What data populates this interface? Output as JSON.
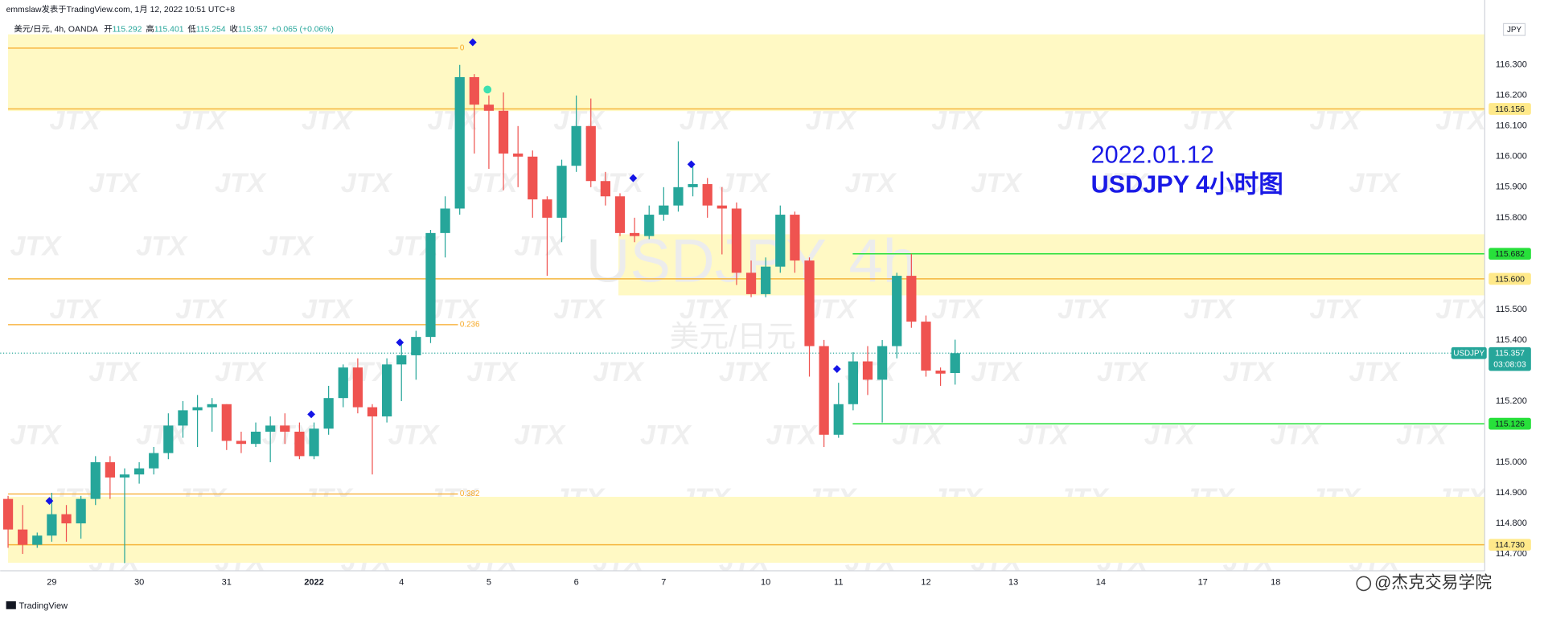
{
  "header": {
    "line1": "emmslaw发表于TradingView.com, 1月 12, 2022 10:51 UTC+8",
    "symbol": "美元/日元, 4h, OANDA",
    "open_label": "开",
    "open": 115.292,
    "high_label": "高",
    "high": 115.401,
    "low_label": "低",
    "low": 115.254,
    "close_label": "收",
    "close": 115.357,
    "change": "+0.065 (+0.06%)"
  },
  "currency": "JPY",
  "branding": "TradingView",
  "credit": "@杰克交易学院",
  "chart_data": {
    "type": "candlestick",
    "watermark": "JTX",
    "symbol_watermark": "USDJPY",
    "interval_watermark": "4h",
    "description_watermark": "美元/日元",
    "annotation": [
      "2022.01.12",
      "USDJPY 4小时图"
    ],
    "categories": [
      null,
      null,
      null,
      "29",
      null,
      null,
      null,
      null,
      null,
      "30",
      null,
      null,
      null,
      null,
      null,
      "31",
      null,
      null,
      null,
      null,
      null,
      "2022",
      null,
      null,
      null,
      null,
      null,
      "4",
      null,
      null,
      null,
      null,
      null,
      "5",
      null,
      null,
      null,
      null,
      null,
      "6",
      null,
      null,
      null,
      null,
      null,
      "7",
      null,
      null,
      null,
      null,
      null,
      null,
      "10",
      null,
      null,
      null,
      null,
      "11",
      null,
      null,
      null,
      null,
      null,
      "12",
      null,
      null,
      null,
      null,
      null,
      "13",
      null,
      null,
      null,
      null,
      null,
      "14",
      null,
      null,
      null,
      null,
      null,
      null,
      "17",
      null,
      null,
      null,
      null,
      "18"
    ],
    "open": [
      114.88,
      114.78,
      114.73,
      114.76,
      114.83,
      114.8,
      114.88,
      115.0,
      114.95,
      114.96,
      114.98,
      115.03,
      115.12,
      115.17,
      115.18,
      115.19,
      115.07,
      115.06,
      115.1,
      115.12,
      115.1,
      115.02,
      115.11,
      115.21,
      115.31,
      115.18,
      115.15,
      115.32,
      115.35,
      115.41,
      115.75,
      115.83,
      116.26,
      116.17,
      116.15,
      116.01,
      116.0,
      115.86,
      115.8,
      115.97,
      116.1,
      115.92,
      115.87,
      115.75,
      115.74,
      115.81,
      115.84,
      115.9,
      115.91,
      115.84,
      115.83,
      115.62,
      115.55,
      115.64,
      115.81,
      115.66,
      115.38,
      115.09,
      115.19,
      115.33,
      115.27,
      115.38,
      115.61,
      115.46,
      115.3,
      115.292,
      null,
      null,
      null,
      null,
      null,
      null,
      null,
      null,
      null,
      null,
      null,
      null,
      null,
      null,
      null,
      null,
      null,
      null,
      null,
      null,
      null,
      null
    ],
    "high": [
      114.89,
      114.86,
      114.77,
      114.9,
      114.86,
      114.89,
      115.02,
      115.02,
      114.98,
      115.0,
      115.05,
      115.16,
      115.2,
      115.22,
      115.21,
      115.19,
      115.1,
      115.13,
      115.15,
      115.16,
      115.13,
      115.13,
      115.25,
      115.32,
      115.34,
      115.19,
      115.34,
      115.39,
      115.43,
      115.76,
      115.87,
      116.3,
      116.27,
      116.2,
      116.21,
      116.1,
      116.02,
      115.87,
      115.99,
      116.2,
      116.19,
      115.95,
      115.88,
      115.8,
      115.84,
      115.9,
      116.05,
      115.97,
      115.93,
      115.9,
      115.85,
      115.66,
      115.67,
      115.84,
      115.82,
      115.67,
      115.4,
      115.26,
      115.36,
      115.38,
      115.4,
      115.62,
      115.682,
      115.48,
      115.31,
      115.401,
      null,
      null,
      null,
      null,
      null,
      null,
      null,
      null,
      null,
      null,
      null,
      null,
      null,
      null,
      null,
      null,
      null,
      null,
      null,
      null,
      null,
      null
    ],
    "low": [
      114.72,
      114.7,
      114.72,
      114.74,
      114.74,
      114.75,
      114.86,
      114.88,
      114.67,
      114.93,
      114.96,
      115.01,
      115.08,
      115.05,
      115.1,
      115.04,
      115.03,
      115.05,
      115.0,
      115.06,
      115.01,
      115.01,
      115.09,
      115.18,
      115.16,
      114.96,
      115.13,
      115.2,
      115.27,
      115.39,
      115.67,
      115.81,
      116.01,
      115.96,
      115.89,
      115.9,
      115.8,
      115.61,
      115.72,
      115.95,
      115.9,
      115.84,
      115.74,
      115.72,
      115.73,
      115.79,
      115.82,
      115.87,
      115.8,
      115.68,
      115.58,
      115.54,
      115.54,
      115.62,
      115.62,
      115.28,
      115.05,
      115.08,
      115.17,
      115.22,
      115.13,
      115.34,
      115.44,
      115.28,
      115.25,
      115.254,
      null,
      null,
      null,
      null,
      null,
      null,
      null,
      null,
      null,
      null,
      null,
      null,
      null,
      null,
      null,
      null,
      null,
      null,
      null,
      null,
      null,
      null
    ],
    "close": [
      114.78,
      114.73,
      114.76,
      114.83,
      114.8,
      114.88,
      115.0,
      114.95,
      114.96,
      114.98,
      115.03,
      115.12,
      115.17,
      115.18,
      115.19,
      115.07,
      115.06,
      115.1,
      115.12,
      115.1,
      115.02,
      115.11,
      115.21,
      115.31,
      115.18,
      115.15,
      115.32,
      115.35,
      115.41,
      115.75,
      115.83,
      116.26,
      116.17,
      116.15,
      116.01,
      116.0,
      115.86,
      115.8,
      115.97,
      116.1,
      115.92,
      115.87,
      115.75,
      115.74,
      115.81,
      115.84,
      115.9,
      115.91,
      115.84,
      115.83,
      115.62,
      115.55,
      115.64,
      115.81,
      115.66,
      115.38,
      115.09,
      115.19,
      115.33,
      115.27,
      115.38,
      115.61,
      115.46,
      115.3,
      115.29,
      115.357,
      null,
      null,
      null,
      null,
      null,
      null,
      null,
      null,
      null,
      null,
      null,
      null,
      null,
      null,
      null,
      null,
      null,
      null,
      null,
      null,
      null,
      null
    ],
    "up_color": "#26a69a",
    "down_color": "#ef5350",
    "ylim": [
      114.661,
      116.448
    ],
    "yticks": [
      {
        "value": 116.3,
        "label": "116.300"
      },
      {
        "value": 116.2,
        "label": "116.200"
      },
      {
        "value": 116.1,
        "label": "116.100"
      },
      {
        "value": 116.0,
        "label": "116.000"
      },
      {
        "value": 115.9,
        "label": "115.900"
      },
      {
        "value": 115.8,
        "label": "115.800"
      },
      {
        "value": 115.5,
        "label": "115.500"
      },
      {
        "value": 115.4,
        "label": "115.400"
      },
      {
        "value": 115.2,
        "label": "115.200"
      },
      {
        "value": 115.0,
        "label": "115.000"
      },
      {
        "value": 114.9,
        "label": "114.900"
      },
      {
        "value": 114.8,
        "label": "114.800"
      },
      {
        "value": 114.7,
        "label": "114.700"
      }
    ],
    "grid": false,
    "zones": [
      {
        "from": 116.149,
        "to": 116.4,
        "color": "#fff9c4"
      },
      {
        "from": 115.546,
        "to": 115.746,
        "color": "#fff9c4"
      },
      {
        "from": 114.671,
        "to": 114.887,
        "color": "#fff9c4"
      }
    ],
    "price_lines": [
      {
        "price": 116.156,
        "color": "#f5b63d",
        "label_bg": "#ffe98a"
      },
      {
        "price": 115.682,
        "color": "#27e03a",
        "label_bg": "#27e03a"
      },
      {
        "price": {
          "value": 115.6,
          "label": "115.600"
        },
        "color": "#f5b63d",
        "label_bg": "#ffe98a"
      },
      {
        "price": 115.126,
        "color": "#27e03a",
        "label_bg": "#27e03a"
      },
      {
        "price": {
          "value": 114.73,
          "label": "114.730"
        },
        "color": "#f5b63d",
        "label_bg": "#ffe98a"
      }
    ],
    "fib": {
      "color": "#f7a823",
      "levels": [
        {
          "label": "0",
          "price": 116.355
        },
        {
          "label": "0.236",
          "price": 115.45
        },
        {
          "label": "0.382",
          "price": 114.896
        }
      ]
    },
    "last": {
      "symbol": "USDJPY",
      "price": 115.357,
      "countdown": "03:08:03",
      "color": "#26a69a"
    }
  }
}
